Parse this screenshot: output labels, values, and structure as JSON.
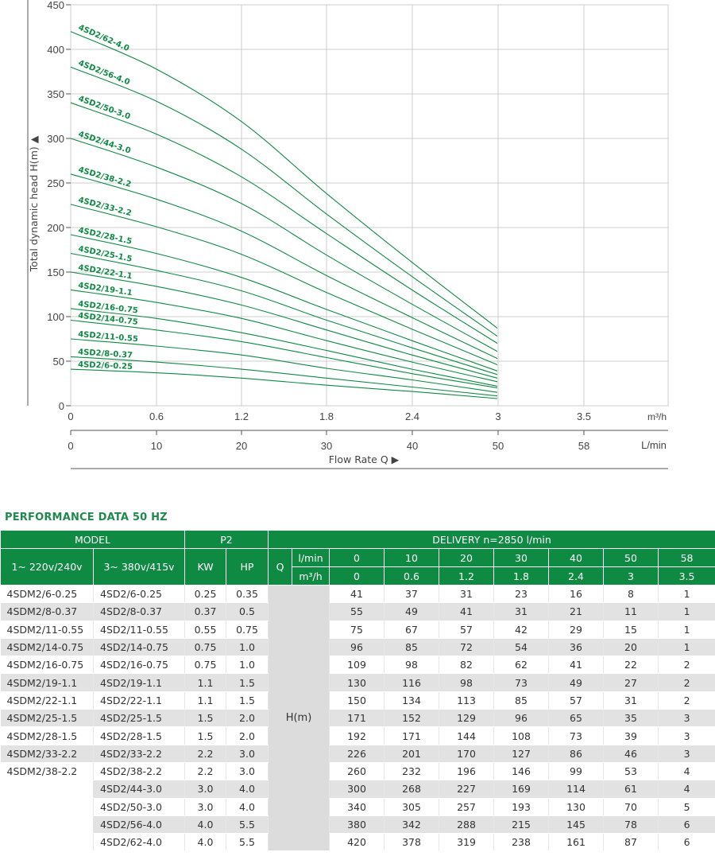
{
  "chart_data": {
    "type": "line",
    "ylabel": "Total dynamic head H(m)",
    "xlabel": "Flow Rate Q",
    "x_unit_top": "m³/h",
    "x_unit_bottom": "L/min",
    "ylim": [
      0,
      450
    ],
    "yticks": [
      "0",
      "50",
      "100",
      "150",
      "200",
      "250",
      "300",
      "350",
      "400",
      "450"
    ],
    "xticks_m3h": [
      "0",
      "0.6",
      "1.2",
      "1.8",
      "2.4",
      "3",
      "3.5"
    ],
    "xticks_lmin": [
      "0",
      "10",
      "20",
      "30",
      "40",
      "50",
      "58"
    ],
    "grid": true,
    "x_lmin": [
      0,
      10,
      20,
      30,
      40,
      50
    ],
    "series": [
      {
        "name": "4SD2/62-4.0",
        "values": [
          420,
          378,
          319,
          238,
          161,
          87
        ]
      },
      {
        "name": "4SD2/56-4.0",
        "values": [
          380,
          342,
          288,
          215,
          145,
          78
        ]
      },
      {
        "name": "4SD2/50-3.0",
        "values": [
          340,
          305,
          257,
          193,
          130,
          70
        ]
      },
      {
        "name": "4SD2/44-3.0",
        "values": [
          300,
          268,
          227,
          169,
          114,
          61
        ]
      },
      {
        "name": "4SD2/38-2.2",
        "values": [
          260,
          232,
          196,
          146,
          99,
          53
        ]
      },
      {
        "name": "4SD2/33-2.2",
        "values": [
          226,
          201,
          170,
          127,
          86,
          46
        ]
      },
      {
        "name": "4SD2/28-1.5",
        "values": [
          192,
          171,
          144,
          108,
          73,
          39
        ]
      },
      {
        "name": "4SD2/25-1.5",
        "values": [
          171,
          152,
          129,
          96,
          65,
          35
        ]
      },
      {
        "name": "4SD2/22-1.1",
        "values": [
          150,
          134,
          113,
          85,
          57,
          31
        ]
      },
      {
        "name": "4SD2/19-1.1",
        "values": [
          130,
          116,
          98,
          73,
          49,
          27
        ]
      },
      {
        "name": "4SD2/16-0.75",
        "values": [
          109,
          98,
          82,
          62,
          41,
          22
        ]
      },
      {
        "name": "4SD2/14-0.75",
        "values": [
          96,
          85,
          72,
          54,
          36,
          20
        ]
      },
      {
        "name": "4SD2/11-0.55",
        "values": [
          75,
          67,
          57,
          42,
          29,
          15
        ]
      },
      {
        "name": "4SD2/8-0.37",
        "values": [
          55,
          49,
          41,
          31,
          21,
          11
        ]
      },
      {
        "name": "4SD2/6-0.25",
        "values": [
          41,
          37,
          31,
          23,
          16,
          8
        ]
      }
    ],
    "colors": {
      "curve": "#0f8a43",
      "grid": "#cccccc",
      "axis": "#555555"
    }
  },
  "table": {
    "title": "PERFORMANCE DATA 50 HZ",
    "header": {
      "model": "MODEL",
      "p2": "P2",
      "delivery": "DELIVERY  n=2850 l/min",
      "single_phase": "1~ 220v/240v",
      "three_phase": "3~ 380v/415v",
      "kw": "KW",
      "hp": "HP",
      "q": "Q",
      "lmin": "l/min",
      "m3h": "m³/h",
      "lmin_values": [
        "0",
        "10",
        "20",
        "30",
        "40",
        "50",
        "58"
      ],
      "m3h_values": [
        "0",
        "0.6",
        "1.2",
        "1.8",
        "2.4",
        "3",
        "3.5"
      ],
      "hm": "H(m)"
    },
    "rows": [
      {
        "m1": "4SDM2/6-0.25",
        "m2": "4SD2/6-0.25",
        "kw": "0.25",
        "hp": "0.35",
        "h": [
          "41",
          "37",
          "31",
          "23",
          "16",
          "8",
          "1"
        ]
      },
      {
        "m1": "4SDM2/8-0.37",
        "m2": "4SD2/8-0.37",
        "kw": "0.37",
        "hp": "0.5",
        "h": [
          "55",
          "49",
          "41",
          "31",
          "21",
          "11",
          "1"
        ]
      },
      {
        "m1": "4SDM2/11-0.55",
        "m2": "4SD2/11-0.55",
        "kw": "0.55",
        "hp": "0.75",
        "h": [
          "75",
          "67",
          "57",
          "42",
          "29",
          "15",
          "1"
        ]
      },
      {
        "m1": "4SDM2/14-0.75",
        "m2": "4SD2/14-0.75",
        "kw": "0.75",
        "hp": "1.0",
        "h": [
          "96",
          "85",
          "72",
          "54",
          "36",
          "20",
          "1"
        ]
      },
      {
        "m1": "4SDM2/16-0.75",
        "m2": "4SD2/16-0.75",
        "kw": "0.75",
        "hp": "1.0",
        "h": [
          "109",
          "98",
          "82",
          "62",
          "41",
          "22",
          "2"
        ]
      },
      {
        "m1": "4SDM2/19-1.1",
        "m2": "4SD2/19-1.1",
        "kw": "1.1",
        "hp": "1.5",
        "h": [
          "130",
          "116",
          "98",
          "73",
          "49",
          "27",
          "2"
        ]
      },
      {
        "m1": "4SDM2/22-1.1",
        "m2": "4SD2/22-1.1",
        "kw": "1.1",
        "hp": "1.5",
        "h": [
          "150",
          "134",
          "113",
          "85",
          "57",
          "31",
          "2"
        ]
      },
      {
        "m1": "4SDM2/25-1.5",
        "m2": "4SD2/25-1.5",
        "kw": "1.5",
        "hp": "2.0",
        "h": [
          "171",
          "152",
          "129",
          "96",
          "65",
          "35",
          "3"
        ]
      },
      {
        "m1": "4SDM2/28-1.5",
        "m2": "4SD2/28-1.5",
        "kw": "1.5",
        "hp": "2.0",
        "h": [
          "192",
          "171",
          "144",
          "108",
          "73",
          "39",
          "3"
        ]
      },
      {
        "m1": "4SDM2/33-2.2",
        "m2": "4SD2/33-2.2",
        "kw": "2.2",
        "hp": "3.0",
        "h": [
          "226",
          "201",
          "170",
          "127",
          "86",
          "46",
          "3"
        ]
      },
      {
        "m1": "4SDM2/38-2.2",
        "m2": "4SD2/38-2.2",
        "kw": "2.2",
        "hp": "3.0",
        "h": [
          "260",
          "232",
          "196",
          "146",
          "99",
          "53",
          "4"
        ]
      },
      {
        "m1": "",
        "m2": "4SD2/44-3.0",
        "kw": "3.0",
        "hp": "4.0",
        "h": [
          "300",
          "268",
          "227",
          "169",
          "114",
          "61",
          "4"
        ]
      },
      {
        "m1": "",
        "m2": "4SD2/50-3.0",
        "kw": "3.0",
        "hp": "4.0",
        "h": [
          "340",
          "305",
          "257",
          "193",
          "130",
          "70",
          "5"
        ]
      },
      {
        "m1": "",
        "m2": "4SD2/56-4.0",
        "kw": "4.0",
        "hp": "5.5",
        "h": [
          "380",
          "342",
          "288",
          "215",
          "145",
          "78",
          "6"
        ]
      },
      {
        "m1": "",
        "m2": "4SD2/62-4.0",
        "kw": "4.0",
        "hp": "5.5",
        "h": [
          "420",
          "378",
          "319",
          "238",
          "161",
          "87",
          "6"
        ]
      }
    ]
  }
}
